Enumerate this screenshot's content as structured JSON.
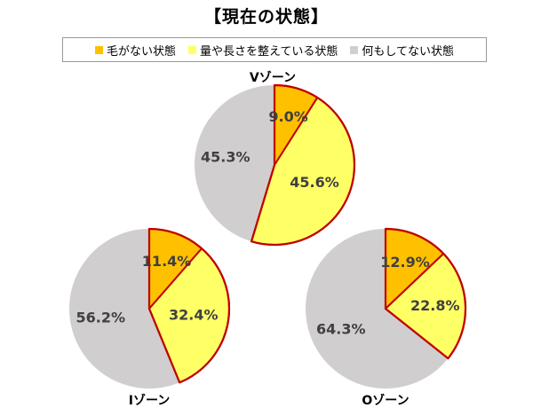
{
  "title": "【現在の状態】",
  "legend": [
    {
      "label": "毛がない状態",
      "color": "#FFC000"
    },
    {
      "label": "量や長さを整えている状態",
      "color": "#FFFF66"
    },
    {
      "label": "何もしてない状態",
      "color": "#D0CECE"
    }
  ],
  "highlight_stroke": "#C00000",
  "chart_data": [
    {
      "type": "pie",
      "title": "Vゾーン",
      "categories": [
        "毛がない状態",
        "量や長さを整えている状態",
        "何もしてない状態"
      ],
      "values": [
        9.0,
        45.6,
        45.3
      ],
      "labels": [
        "9.0%",
        "45.6%",
        "45.3%"
      ]
    },
    {
      "type": "pie",
      "title": "Iゾーン",
      "categories": [
        "毛がない状態",
        "量や長さを整えている状態",
        "何もしてない状態"
      ],
      "values": [
        11.4,
        32.4,
        56.2
      ],
      "labels": [
        "11.4%",
        "32.4%",
        "56.2%"
      ]
    },
    {
      "type": "pie",
      "title": "Oゾーン",
      "categories": [
        "毛がない状態",
        "量や長さを整えている状態",
        "何もしてない状態"
      ],
      "values": [
        12.9,
        22.8,
        64.3
      ],
      "labels": [
        "12.9%",
        "22.8%",
        "64.3%"
      ]
    }
  ]
}
